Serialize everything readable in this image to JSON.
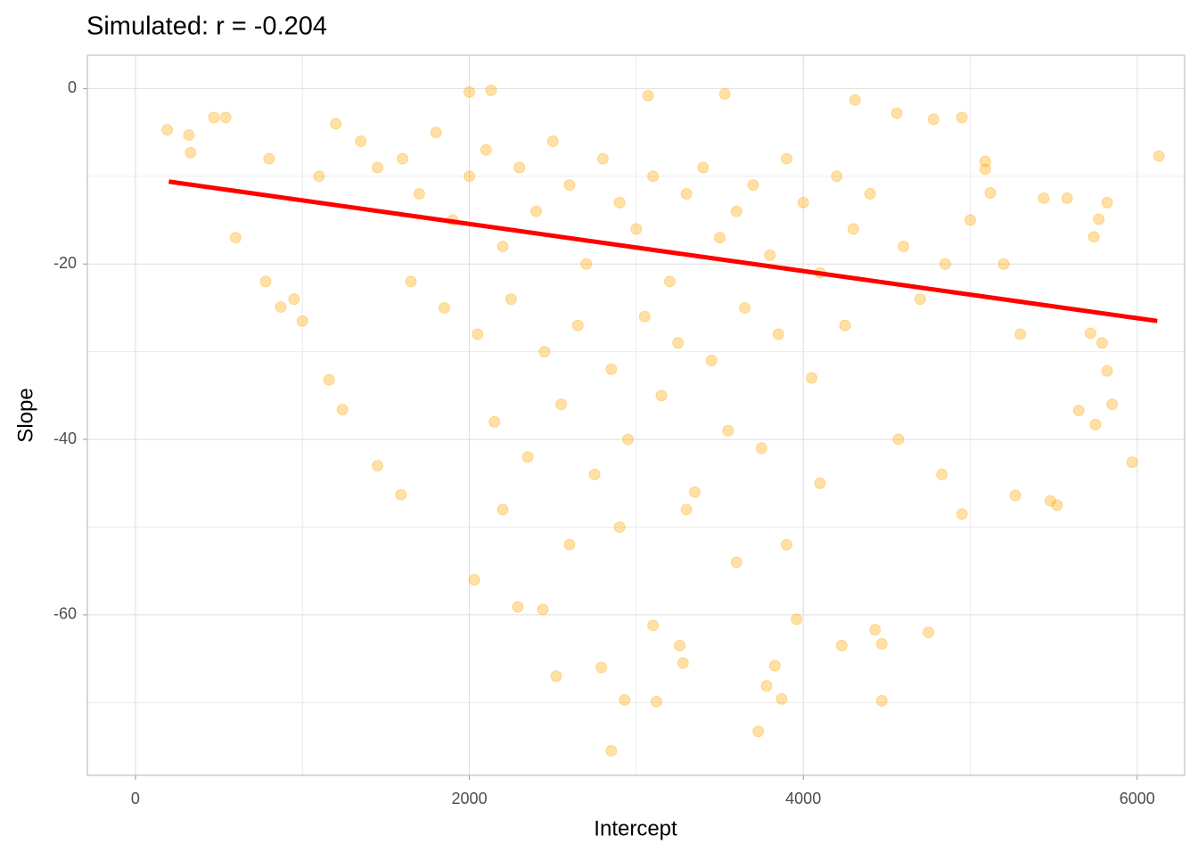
{
  "chart_data": {
    "type": "scatter",
    "title": "Simulated: r = -0.204",
    "x_label": "Intercept",
    "y_label": "Slope",
    "xlim": [
      -288,
      6284
    ],
    "ylim": [
      3.8,
      -78.3
    ],
    "xticks": [
      0,
      2000,
      4000,
      6000
    ],
    "yticks": [
      0,
      -20,
      -40,
      -60
    ],
    "x_minor_ticks": [
      1000,
      3000,
      5000
    ],
    "y_minor_ticks": [
      -10,
      -30,
      -50,
      -70
    ],
    "grid": true,
    "color": "#FFA500",
    "x": [
      190,
      6130,
      5970,
      2850,
      3730,
      2930,
      3120,
      4470,
      3780,
      2520,
      2790,
      3830,
      3870,
      3960,
      4430,
      4750,
      4230,
      4470,
      3280,
      3260,
      3100,
      2290,
      2440,
      2030,
      1590,
      1450,
      1160,
      1240,
      5480,
      5520,
      5270,
      5850,
      5820,
      5790,
      5720,
      5650,
      5750,
      5820,
      5580,
      5740,
      5770,
      5440,
      5120,
      4950,
      4830,
      4570,
      600,
      780,
      870,
      950,
      1000,
      320,
      330,
      470,
      540,
      2000,
      2130,
      3070,
      3530,
      4310,
      4950,
      4780,
      5090,
      5090,
      4560,
      1600,
      1700,
      1800,
      1900,
      2000,
      2100,
      2200,
      2300,
      2400,
      2500,
      2600,
      2700,
      2800,
      2900,
      3000,
      3100,
      3200,
      3300,
      3400,
      3500,
      3600,
      3700,
      3800,
      3900,
      4000,
      4100,
      4200,
      4300,
      4400,
      1650,
      1850,
      2050,
      2250,
      2450,
      2650,
      2850,
      3050,
      3250,
      3450,
      3650,
      3850,
      4050,
      4250,
      2150,
      2350,
      2550,
      2750,
      2950,
      3150,
      3350,
      3550,
      3750,
      1200,
      1350,
      1450,
      4600,
      4700,
      4850,
      5000,
      2600,
      2900,
      3300,
      3600,
      2200,
      3900,
      4100,
      800,
      1100,
      5200,
      5300
    ],
    "y": [
      -4.7,
      -7.7,
      -42.6,
      -75.5,
      -73.3,
      -69.7,
      -69.9,
      -69.8,
      -68.1,
      -67,
      -66,
      -65.8,
      -69.6,
      -60.5,
      -61.7,
      -62,
      -63.5,
      -63.3,
      -65.5,
      -63.5,
      -61.2,
      -59.1,
      -59.4,
      -56,
      -46.3,
      -43,
      -33.2,
      -36.6,
      -47,
      -47.5,
      -46.4,
      -36,
      -32.2,
      -29,
      -27.9,
      -36.7,
      -38.3,
      -13,
      -12.5,
      -16.9,
      -14.9,
      -12.5,
      -11.9,
      -48.5,
      -44,
      -40,
      -17,
      -22,
      -24.9,
      -24,
      -26.5,
      -5.3,
      -7.3,
      -3.3,
      -3.3,
      -0.4,
      -0.2,
      -0.8,
      -0.6,
      -1.3,
      -3.3,
      -3.5,
      -8.3,
      -9.2,
      -2.8,
      -8,
      -12,
      -5,
      -15,
      -10,
      -7,
      -18,
      -9,
      -14,
      -6,
      -11,
      -20,
      -8,
      -13,
      -16,
      -10,
      -22,
      -12,
      -9,
      -17,
      -14,
      -11,
      -19,
      -8,
      -13,
      -21,
      -10,
      -16,
      -12,
      -22,
      -25,
      -28,
      -24,
      -30,
      -27,
      -32,
      -26,
      -29,
      -31,
      -25,
      -28,
      -33,
      -27,
      -38,
      -42,
      -36,
      -44,
      -40,
      -35,
      -46,
      -39,
      -41,
      -4,
      -6,
      -9,
      -18,
      -24,
      -20,
      -15,
      -52,
      -50,
      -48,
      -54,
      -48,
      -52,
      -45,
      -8,
      -10,
      -20,
      -28
    ],
    "fit": {
      "x": [
        200,
        6120
      ],
      "y": [
        -10.6,
        -26.5
      ],
      "color": "#FF0000"
    }
  }
}
